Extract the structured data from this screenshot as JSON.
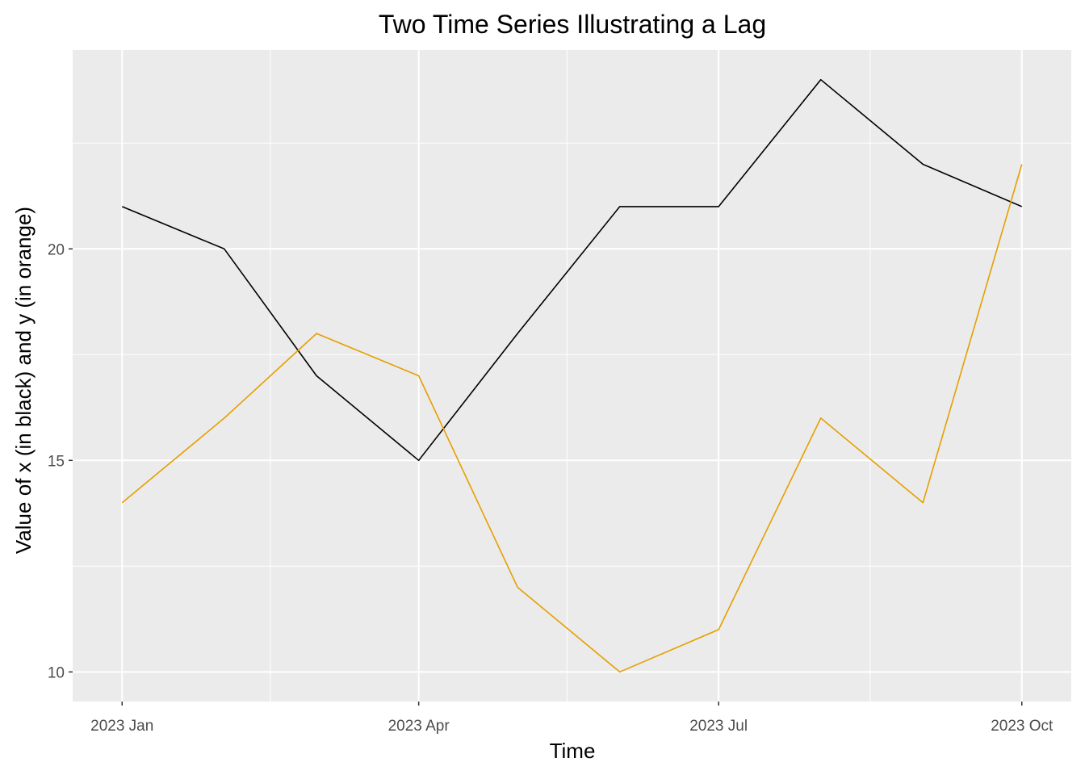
{
  "chart_data": {
    "type": "line",
    "title": "Two Time Series Illustrating a Lag",
    "xlabel": "Time",
    "ylabel": "Value of x (in black) and y (in orange)",
    "x": [
      "2023-01-01",
      "2023-02-01",
      "2023-03-01",
      "2023-04-01",
      "2023-05-01",
      "2023-06-01",
      "2023-07-01",
      "2023-08-01",
      "2023-09-01",
      "2023-10-01"
    ],
    "x_ticks": [
      {
        "date": "2023-01-01",
        "label": "2023 Jan"
      },
      {
        "date": "2023-04-01",
        "label": "2023 Apr"
      },
      {
        "date": "2023-07-01",
        "label": "2023 Jul"
      },
      {
        "date": "2023-10-01",
        "label": "2023 Oct"
      }
    ],
    "x_minor_ticks": [
      "2023-02-15",
      "2023-05-16",
      "2023-08-16"
    ],
    "y_ticks": [
      10,
      15,
      20
    ],
    "y_minor_ticks": [
      12.5,
      17.5,
      22.5
    ],
    "xlim": [
      "2022-12-17",
      "2023-10-16"
    ],
    "ylim": [
      9.3,
      24.7
    ],
    "grid": true,
    "panel_background": "#ebebeb",
    "grid_color": "#ffffff",
    "series": [
      {
        "values": [
          21,
          20,
          17,
          15,
          18,
          21,
          21,
          24,
          22,
          21
        ],
        "color": "#000000"
      },
      {
        "values": [
          14,
          16,
          18,
          17,
          12,
          10,
          11,
          16,
          14,
          22
        ],
        "color": "#E69F00"
      }
    ]
  }
}
